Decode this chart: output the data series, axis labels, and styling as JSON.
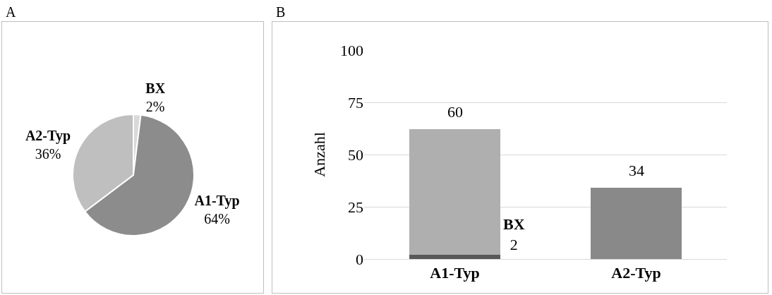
{
  "chart_data": [
    {
      "type": "pie",
      "title": "A",
      "categories": [
        "BX",
        "A1-Typ",
        "A2-Typ"
      ],
      "values": [
        2,
        64,
        36
      ],
      "colors": [
        "#d9d9d9",
        "#8c8c8c",
        "#bfbfbf"
      ],
      "value_labels": [
        "2%",
        "64%",
        "36%"
      ],
      "legend": false
    },
    {
      "type": "bar",
      "title": "B",
      "ylabel": "Anzahl",
      "categories": [
        "A1-Typ",
        "A2-Typ"
      ],
      "stacked": true,
      "series": [
        {
          "name": "BX",
          "color": "#595959",
          "values": [
            2,
            null
          ]
        },
        {
          "color": "#afafaf",
          "values": [
            60,
            null
          ]
        },
        {
          "color": "#898989",
          "values": [
            null,
            34
          ]
        }
      ],
      "ylim": [
        0,
        100
      ],
      "yticks": [
        0,
        25,
        50,
        75,
        100
      ],
      "grid": "y",
      "data_labels": true,
      "legend": false
    }
  ]
}
